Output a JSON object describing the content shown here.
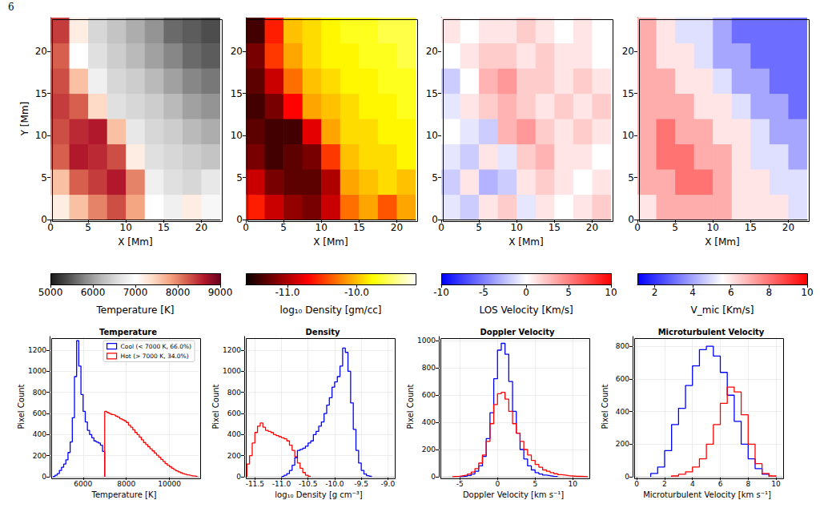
{
  "page_number": "6",
  "chart_data": [
    {
      "type": "heatmap",
      "x_label": "X [Mm]",
      "y_label": "Y [Mm]",
      "xlim": [
        0,
        22.5
      ],
      "xticks": [
        0,
        5,
        10,
        15,
        20
      ],
      "ylim": [
        0,
        24
      ],
      "yticks": [
        0,
        5,
        10,
        15,
        20
      ],
      "x_edges": [
        0,
        2.5,
        5,
        7.5,
        10,
        12.5,
        15,
        17.5,
        20,
        22.5
      ],
      "y_edges": [
        0,
        3,
        6,
        9,
        12,
        15,
        18,
        21,
        24
      ],
      "values": [
        [
          7200,
          7600,
          8000,
          8300,
          7800,
          7000,
          6800,
          7200,
          6900
        ],
        [
          7600,
          8200,
          8400,
          8600,
          8000,
          6800,
          6600,
          6500,
          6700
        ],
        [
          8200,
          8600,
          8500,
          8300,
          7200,
          6600,
          6500,
          6400,
          6300
        ],
        [
          8300,
          8500,
          8600,
          7600,
          6700,
          6500,
          6400,
          6200,
          6100
        ],
        [
          8400,
          8200,
          7400,
          6600,
          6500,
          6400,
          6200,
          6000,
          5900
        ],
        [
          8300,
          7600,
          6800,
          6500,
          6400,
          6200,
          6000,
          5800,
          5700
        ],
        [
          8200,
          7000,
          6600,
          6400,
          6200,
          6000,
          5800,
          5600,
          5500
        ],
        [
          8400,
          7200,
          6500,
          6300,
          6100,
          5900,
          5600,
          5500,
          5400
        ]
      ],
      "colorbar": {
        "label": "Temperature [K]",
        "range": [
          5000,
          9000
        ],
        "ticks": [
          5000,
          6000,
          7000,
          8000,
          9000
        ]
      }
    },
    {
      "type": "heatmap",
      "x_label": "X [Mm]",
      "xlim": [
        0,
        22.5
      ],
      "xticks": [
        0,
        5,
        10,
        15,
        20
      ],
      "ylim": [
        0,
        24
      ],
      "yticks": [
        0,
        5,
        10,
        15,
        20
      ],
      "x_edges": [
        0,
        2.5,
        5,
        7.5,
        10,
        12.5,
        15,
        17.5,
        20,
        22.5
      ],
      "y_edges": [
        0,
        3,
        6,
        9,
        12,
        15,
        18,
        21,
        24
      ],
      "values": [
        [
          -10.6,
          -10.9,
          -11.1,
          -11.2,
          -10.9,
          -10.3,
          -10.1,
          -10.4,
          -10.1
        ],
        [
          -10.9,
          -11.2,
          -11.3,
          -11.3,
          -11.0,
          -10.1,
          -10.0,
          -9.9,
          -10.0
        ],
        [
          -11.2,
          -11.4,
          -11.3,
          -11.2,
          -10.5,
          -10.0,
          -9.9,
          -9.9,
          -9.8
        ],
        [
          -11.3,
          -11.4,
          -11.4,
          -10.8,
          -10.1,
          -9.9,
          -9.9,
          -9.8,
          -9.8
        ],
        [
          -11.4,
          -11.2,
          -10.7,
          -10.1,
          -10.0,
          -9.9,
          -9.8,
          -9.8,
          -9.7
        ],
        [
          -11.3,
          -10.9,
          -10.3,
          -10.0,
          -9.9,
          -9.8,
          -9.8,
          -9.7,
          -9.7
        ],
        [
          -11.2,
          -10.5,
          -10.1,
          -9.9,
          -9.8,
          -9.8,
          -9.7,
          -9.7,
          -9.6
        ],
        [
          -11.4,
          -10.6,
          -10.0,
          -9.9,
          -9.8,
          -9.7,
          -9.7,
          -9.6,
          -9.6
        ]
      ],
      "colorbar": {
        "label": "log₁₀ Density [gm/cc]",
        "range": [
          -11.6,
          -9.15
        ],
        "ticks": [
          {
            "value": -11,
            "label": "-11.0"
          },
          {
            "value": -10,
            "label": "-10.0"
          }
        ]
      }
    },
    {
      "type": "heatmap",
      "x_label": "X [Mm]",
      "xlim": [
        0,
        22.5
      ],
      "xticks": [
        0,
        5,
        10,
        15,
        20
      ],
      "ylim": [
        0,
        24
      ],
      "yticks": [
        0,
        5,
        10,
        15,
        20
      ],
      "x_edges": [
        0,
        2.5,
        5,
        7.5,
        10,
        12.5,
        15,
        17.5,
        20,
        22.5
      ],
      "y_edges": [
        0,
        3,
        6,
        9,
        12,
        15,
        18,
        21,
        24
      ],
      "values": [
        [
          -1,
          -2,
          1,
          2,
          -1,
          1,
          0,
          1,
          2
        ],
        [
          -2,
          1,
          -3,
          -2,
          1,
          2,
          1,
          0,
          1
        ],
        [
          -1,
          -2,
          1,
          -1,
          2,
          3,
          1,
          1,
          0
        ],
        [
          0,
          -1,
          -2,
          3,
          4,
          2,
          1,
          2,
          1
        ],
        [
          -1,
          1,
          2,
          3,
          2,
          1,
          2,
          1,
          2
        ],
        [
          -2,
          0,
          3,
          4,
          2,
          2,
          1,
          2,
          1
        ],
        [
          0,
          1,
          2,
          2,
          1,
          2,
          1,
          1,
          0
        ],
        [
          1,
          0,
          1,
          1,
          2,
          1,
          0,
          1,
          0
        ]
      ],
      "colorbar": {
        "label": "LOS Velocity [Km/s]",
        "range": [
          -10,
          10
        ],
        "ticks": [
          -10,
          -5,
          0,
          5,
          10
        ]
      }
    },
    {
      "type": "heatmap",
      "x_label": "X [Mm]",
      "xlim": [
        0,
        22.5
      ],
      "xticks": [
        0,
        5,
        10,
        15,
        20
      ],
      "ylim": [
        0,
        24
      ],
      "yticks": [
        0,
        5,
        10,
        15,
        20
      ],
      "x_edges": [
        0,
        2.5,
        5,
        7.5,
        10,
        12.5,
        15,
        17.5,
        20,
        22.5
      ],
      "y_edges": [
        0,
        3,
        6,
        9,
        12,
        15,
        18,
        21,
        24
      ],
      "values": [
        [
          6,
          7,
          7,
          7,
          7,
          6,
          6,
          6,
          5
        ],
        [
          7,
          7,
          8,
          8,
          7,
          6,
          6,
          5,
          5
        ],
        [
          7,
          8,
          8,
          7,
          7,
          6,
          5,
          5,
          4
        ],
        [
          7,
          8,
          7,
          7,
          6,
          6,
          5,
          4,
          4
        ],
        [
          7,
          7,
          7,
          6,
          6,
          5,
          4,
          4,
          3
        ],
        [
          7,
          7,
          6,
          6,
          5,
          4,
          4,
          3,
          3
        ],
        [
          7,
          6,
          6,
          5,
          4,
          4,
          3,
          3,
          3
        ],
        [
          7,
          6,
          5,
          5,
          4,
          3,
          3,
          3,
          3
        ]
      ],
      "colorbar": {
        "label": "V_mic [Km/s]",
        "range": [
          1.1,
          10
        ],
        "ticks": [
          2,
          4,
          6,
          8,
          10
        ]
      }
    },
    {
      "type": "histogram",
      "title": "Temperature",
      "x_label": "Temperature [K]",
      "y_label": "Pixel Count",
      "xlim": [
        4450,
        11350
      ],
      "xticks": [
        6000,
        8000,
        10000
      ],
      "ylim": [
        0,
        1330
      ],
      "yticks": [
        0,
        200,
        400,
        600,
        800,
        1000,
        1200
      ],
      "grid": true,
      "legend": "upper right",
      "series": [
        {
          "name": "Cool (< 7000 K, 66.0%)",
          "color": "#0000ff",
          "bins": [
            4600,
            4700,
            4800,
            4900,
            5000,
            5100,
            5200,
            5300,
            5400,
            5500,
            5600,
            5700,
            5800,
            5900,
            6000,
            6100,
            6200,
            6300,
            6400,
            6500,
            6600,
            6700,
            6800,
            6900,
            7000
          ],
          "counts": [
            5,
            15,
            30,
            60,
            90,
            120,
            160,
            230,
            330,
            560,
            950,
            1290,
            1050,
            780,
            620,
            520,
            440,
            400,
            370,
            340,
            330,
            320,
            300,
            240
          ]
        },
        {
          "name": "Hot (> 7000 K, 34.0%)",
          "color": "#ff0000",
          "bins": [
            7000,
            7100,
            7200,
            7300,
            7400,
            7500,
            7600,
            7700,
            7800,
            7900,
            8000,
            8100,
            8200,
            8300,
            8400,
            8500,
            8600,
            8700,
            8800,
            8900,
            9000,
            9100,
            9200,
            9300,
            9400,
            9500,
            9600,
            9700,
            9800,
            9900,
            10000,
            10100,
            10200,
            10300,
            10400,
            10500,
            10600,
            10700,
            10800,
            10900,
            11000,
            11100,
            11200,
            11300
          ],
          "counts": [
            620,
            610,
            600,
            590,
            585,
            575,
            565,
            550,
            540,
            530,
            515,
            490,
            470,
            445,
            420,
            400,
            375,
            350,
            325,
            305,
            285,
            265,
            245,
            225,
            205,
            185,
            165,
            145,
            125,
            110,
            95,
            80,
            68,
            56,
            46,
            38,
            30,
            24,
            18,
            13,
            9,
            6,
            3
          ]
        }
      ]
    },
    {
      "type": "histogram",
      "title": "Density",
      "x_label": "log₁₀ Density [g cm⁻³]",
      "y_label": "Pixel Count",
      "xlim": [
        -11.7,
        -8.9
      ],
      "xticks": [
        -11.5,
        {
          "value": -11,
          "label": "-11.0"
        },
        -10.5,
        {
          "value": -10,
          "label": "-10.0"
        },
        -9.5,
        {
          "value": -9,
          "label": "-9.0"
        }
      ],
      "ylim": [
        0,
        1330
      ],
      "yticks": [
        0,
        200,
        400,
        600,
        800,
        1000,
        1200
      ],
      "grid": true,
      "series": [
        {
          "color": "#ff0000",
          "bins": [
            -11.65,
            -11.6,
            -11.55,
            -11.5,
            -11.45,
            -11.4,
            -11.35,
            -11.3,
            -11.25,
            -11.2,
            -11.15,
            -11.1,
            -11.05,
            -11.0,
            -10.95,
            -10.9,
            -10.85,
            -10.8,
            -10.75,
            -10.7,
            -10.65,
            -10.6,
            -10.55,
            -10.5,
            -10.45
          ],
          "counts": [
            120,
            200,
            320,
            420,
            480,
            510,
            470,
            440,
            430,
            420,
            400,
            390,
            380,
            370,
            360,
            340,
            300,
            250,
            190,
            130,
            80,
            40,
            15,
            5
          ]
        },
        {
          "color": "#0000ff",
          "bins": [
            -11.0,
            -10.95,
            -10.9,
            -10.85,
            -10.8,
            -10.75,
            -10.7,
            -10.65,
            -10.6,
            -10.55,
            -10.5,
            -10.45,
            -10.4,
            -10.35,
            -10.3,
            -10.25,
            -10.2,
            -10.15,
            -10.1,
            -10.05,
            -10.0,
            -9.95,
            -9.9,
            -9.85,
            -9.8,
            -9.75,
            -9.7,
            -9.65,
            -9.6,
            -9.55,
            -9.5,
            -9.45,
            -9.4,
            -9.35,
            -9.3
          ],
          "counts": [
            5,
            15,
            30,
            60,
            110,
            180,
            250,
            260,
            270,
            290,
            320,
            340,
            400,
            430,
            480,
            520,
            600,
            680,
            750,
            850,
            900,
            950,
            1050,
            1220,
            1180,
            1000,
            700,
            450,
            250,
            130,
            60,
            25,
            10,
            4
          ]
        }
      ]
    },
    {
      "type": "histogram",
      "title": "Doppler Velocity",
      "x_label": "Doppler Velocity [km s⁻¹]",
      "y_label": "Pixel Count",
      "xlim": [
        -7.8,
        12
      ],
      "xticks": [
        -5,
        0,
        5,
        10
      ],
      "ylim": [
        0,
        1030
      ],
      "yticks": [
        0,
        200,
        400,
        600,
        800,
        1000
      ],
      "grid": true,
      "series": [
        {
          "color": "#0000ff",
          "bins": [
            -5,
            -4.5,
            -4,
            -3.5,
            -3,
            -2.5,
            -2,
            -1.5,
            -1,
            -0.5,
            0,
            0.5,
            1,
            1.5,
            2,
            2.5,
            3,
            3.5,
            4,
            4.5,
            5,
            5.5,
            6,
            6.5,
            7,
            7.5,
            8
          ],
          "counts": [
            2,
            5,
            10,
            20,
            40,
            80,
            150,
            280,
            470,
            720,
            930,
            980,
            900,
            700,
            480,
            320,
            200,
            130,
            80,
            50,
            30,
            20,
            12,
            8,
            4,
            2
          ]
        },
        {
          "color": "#ff0000",
          "bins": [
            -6,
            -5.5,
            -5,
            -4.5,
            -4,
            -3.5,
            -3,
            -2.5,
            -2,
            -1.5,
            -1,
            -0.5,
            0,
            0.5,
            1,
            1.5,
            2,
            2.5,
            3,
            3.5,
            4,
            4.5,
            5,
            5.5,
            6,
            6.5,
            7,
            7.5,
            8,
            8.5,
            9,
            9.5,
            10,
            10.5,
            11,
            11.5,
            12
          ],
          "counts": [
            2,
            4,
            8,
            12,
            20,
            35,
            60,
            100,
            160,
            260,
            390,
            530,
            610,
            620,
            570,
            480,
            390,
            320,
            260,
            200,
            160,
            120,
            90,
            70,
            50,
            40,
            30,
            22,
            16,
            12,
            8,
            6,
            4,
            3,
            2,
            1
          ]
        }
      ]
    },
    {
      "type": "histogram",
      "title": "Microturbulent Velocity",
      "x_label": "Microturbulent Velocity [km s⁻¹]",
      "y_label": "Pixel Count",
      "xlim": [
        -0.3,
        10.4
      ],
      "xticks": [
        0,
        2,
        4,
        6,
        8,
        10
      ],
      "ylim": [
        0,
        860
      ],
      "yticks": [
        0,
        200,
        400,
        600,
        800
      ],
      "grid": true,
      "series": [
        {
          "color": "#0000ff",
          "bins": [
            1,
            1.5,
            2,
            2.5,
            3,
            3.5,
            4,
            4.5,
            5,
            5.5,
            6,
            6.5,
            7,
            7.5,
            8,
            8.5,
            9,
            9.5
          ],
          "counts": [
            20,
            60,
            160,
            320,
            420,
            560,
            680,
            780,
            800,
            740,
            640,
            500,
            340,
            200,
            110,
            50,
            15
          ]
        },
        {
          "color": "#ff0000",
          "bins": [
            2.5,
            3,
            3.5,
            4,
            4.5,
            5,
            5.5,
            6,
            6.5,
            7,
            7.5,
            8,
            8.5,
            9,
            9.5,
            10
          ],
          "counts": [
            5,
            15,
            30,
            60,
            110,
            200,
            320,
            450,
            550,
            520,
            380,
            200,
            80,
            20,
            5
          ]
        }
      ]
    }
  ]
}
